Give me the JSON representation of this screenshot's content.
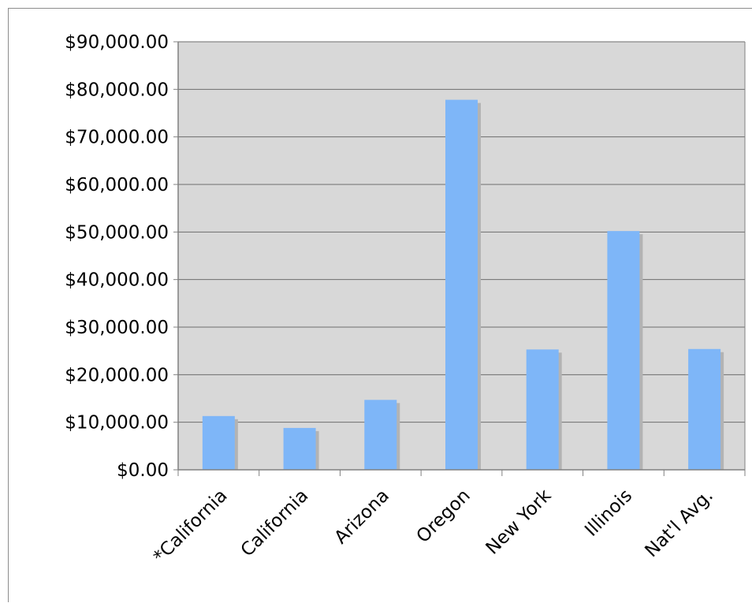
{
  "chart_data": {
    "type": "bar",
    "categories": [
      "*California",
      "California",
      "Arizona",
      "Oregon",
      "New York",
      "Illinois",
      "Nat'l Avg."
    ],
    "values": [
      11300,
      8800,
      14700,
      77800,
      25300,
      50200,
      25400
    ],
    "yticks": [
      "$0.00",
      "$10,000.00",
      "$20,000.00",
      "$30,000.00",
      "$40,000.00",
      "$50,000.00",
      "$60,000.00",
      "$70,000.00",
      "$80,000.00",
      "$90,000.00"
    ],
    "ylim": [
      0,
      90000
    ],
    "grid": true,
    "legend": "none",
    "colors": {
      "bar": "#7eb6f8",
      "bar_shadow": "#b3b3b3",
      "plot_background": "#d8d8d8",
      "gridline": "#6e6e6e",
      "axis": "#808080"
    }
  }
}
